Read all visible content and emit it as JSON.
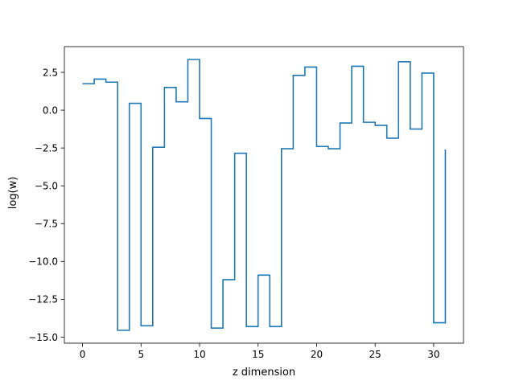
{
  "chart_data": {
    "type": "line",
    "step": "post",
    "title": "",
    "xlabel": "z dimension",
    "ylabel": "log(w)",
    "xlim": [
      -1.55,
      32.55
    ],
    "ylim": [
      -15.4,
      4.2
    ],
    "grid": false,
    "legend": "none",
    "line_color": "#1f77b4",
    "xticks": [
      0,
      5,
      10,
      15,
      20,
      25,
      30
    ],
    "xtick_labels": [
      "0",
      "5",
      "10",
      "15",
      "20",
      "25",
      "30"
    ],
    "yticks": [
      2.5,
      0.0,
      -2.5,
      -5.0,
      -7.5,
      -10.0,
      -12.5,
      -15.0
    ],
    "ytick_labels": [
      "2.5",
      "0.0",
      "−2.5",
      "−5.0",
      "−7.5",
      "−10.0",
      "−12.5",
      "−15.0"
    ],
    "series": [
      {
        "x": [
          0,
          1,
          2,
          3,
          4,
          5,
          6,
          7,
          8,
          9,
          10,
          11,
          12,
          13,
          14,
          15,
          16,
          17,
          18,
          19,
          20,
          21,
          22,
          23,
          24,
          25,
          26,
          27,
          28,
          29,
          30,
          31
        ],
        "values": [
          1.75,
          2.05,
          1.85,
          -14.55,
          0.45,
          -14.25,
          -2.45,
          1.5,
          0.55,
          3.35,
          -0.55,
          -14.4,
          -11.2,
          -2.85,
          -14.3,
          -10.9,
          -14.3,
          -2.55,
          2.3,
          2.85,
          -2.4,
          -2.55,
          -0.85,
          2.9,
          -0.8,
          -1.0,
          -1.85,
          3.2,
          -1.25,
          2.45,
          -14.05,
          -2.6
        ]
      }
    ]
  }
}
